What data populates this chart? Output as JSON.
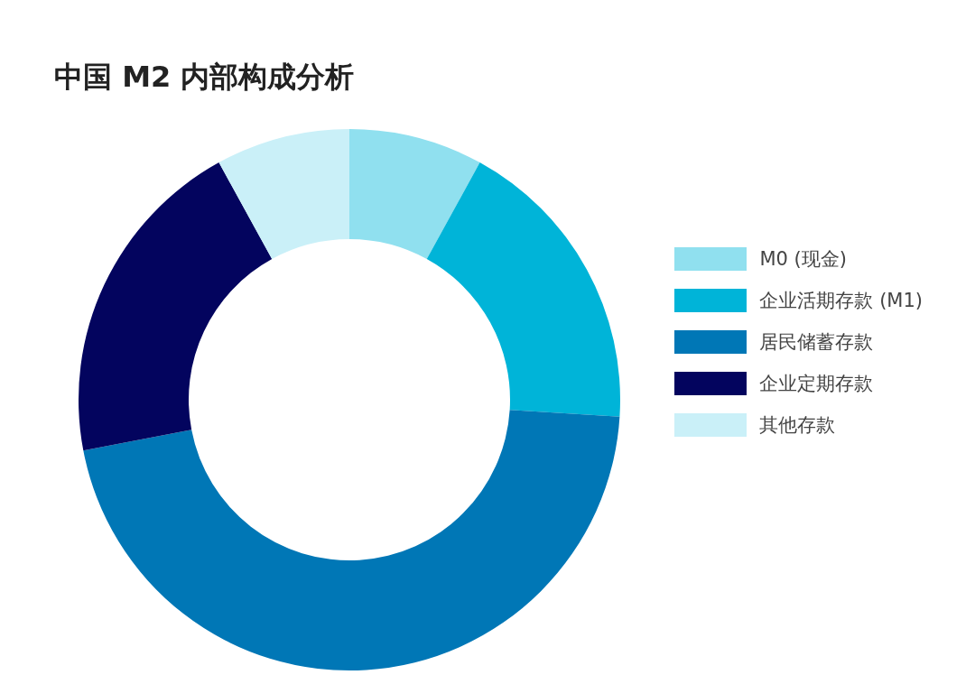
{
  "chart_data": {
    "type": "donut",
    "title": "中国 M2 内部构成分析",
    "categories": [
      "M0 (现金)",
      "企业活期存款 (M1)",
      "居民储蓄存款",
      "企业定期存款",
      "其他存款"
    ],
    "values": [
      8,
      18,
      46,
      20,
      8
    ],
    "colors": [
      "#90e0ef",
      "#00b4d8",
      "#0077b6",
      "#03045e",
      "#caf0f8"
    ],
    "legend": "right"
  }
}
